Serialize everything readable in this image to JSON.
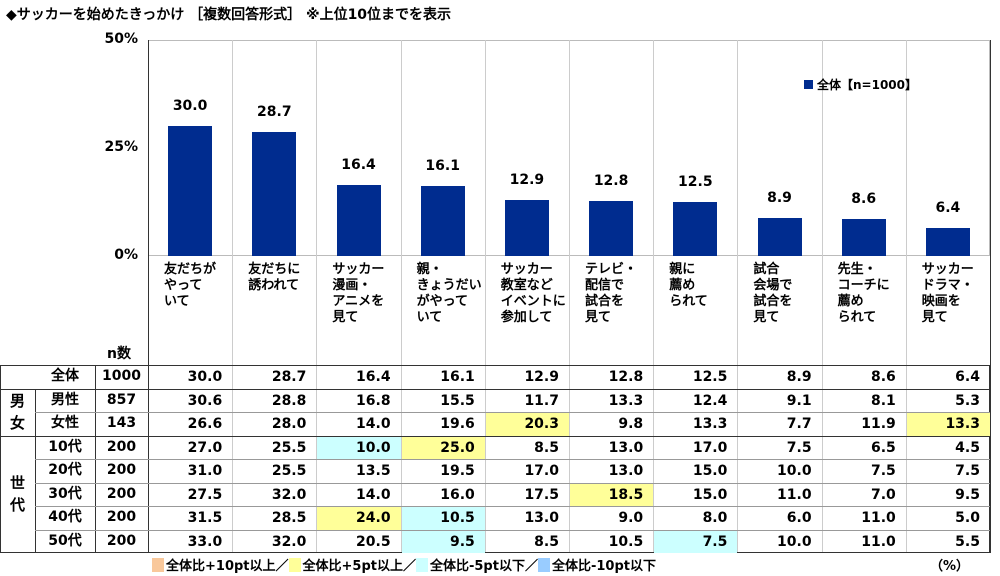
{
  "title": "◆サッカーを始めたきっかけ ［複数回答形式］ ※上位10位までを表示",
  "chart_data": {
    "type": "bar",
    "title": "◆サッカーを始めたきっかけ ［複数回答形式］ ※上位10位までを表示",
    "ylim": [
      0,
      50
    ],
    "yticks": [
      "0%",
      "25%",
      "50%"
    ],
    "grid": "vertical category separators",
    "legend_position": "top-right",
    "bar_color": "#002c8f",
    "categories": [
      "友だちが\nやって\nいて",
      "友だちに\n誘われて",
      "サッカー\n漫画・\nアニメを\n見て",
      "親・\nきょうだい\nがやって\nいて",
      "サッカー\n教室など\nイベントに\n参加して",
      "テレビ・\n配信で\n試合を\n見て",
      "親に\n薦め\nられて",
      "試合\n会場で\n試合を\n見て",
      "先生・\nコーチに\n薦め\nられて",
      "サッカー\nドラマ・\n映画を\n見て"
    ],
    "series": [
      {
        "name": "全体【n=1000】",
        "values": [
          30.0,
          28.7,
          16.4,
          16.1,
          12.9,
          12.8,
          12.5,
          8.9,
          8.6,
          6.4
        ]
      }
    ]
  },
  "table": {
    "n_header": "n数",
    "groups": [
      {
        "label": "男\n女",
        "rows": [
          1,
          2
        ]
      },
      {
        "label": "世\n代",
        "rows": [
          3,
          4,
          5,
          6,
          7
        ]
      }
    ],
    "rows": [
      {
        "label": "全体",
        "n": "1000",
        "values": [
          "30.0",
          "28.7",
          "16.4",
          "16.1",
          "12.9",
          "12.8",
          "12.5",
          "8.9",
          "8.6",
          "6.4"
        ],
        "highlight": []
      },
      {
        "label": "男性",
        "n": "857",
        "values": [
          "30.6",
          "28.8",
          "16.8",
          "15.5",
          "11.7",
          "13.3",
          "12.4",
          "9.1",
          "8.1",
          "5.3"
        ],
        "highlight": []
      },
      {
        "label": "女性",
        "n": "143",
        "values": [
          "26.6",
          "28.0",
          "14.0",
          "19.6",
          "20.3",
          "9.8",
          "13.3",
          "7.7",
          "11.9",
          "13.3"
        ],
        "highlight": [
          [
            4,
            "plus5"
          ],
          [
            9,
            "plus5"
          ]
        ]
      },
      {
        "label": "10代",
        "n": "200",
        "values": [
          "27.0",
          "25.5",
          "10.0",
          "25.0",
          "8.5",
          "13.0",
          "17.0",
          "7.5",
          "6.5",
          "4.5"
        ],
        "highlight": [
          [
            2,
            "minus5"
          ],
          [
            3,
            "plus5"
          ]
        ]
      },
      {
        "label": "20代",
        "n": "200",
        "values": [
          "31.0",
          "25.5",
          "13.5",
          "19.5",
          "17.0",
          "13.0",
          "15.0",
          "10.0",
          "7.5",
          "7.5"
        ],
        "highlight": []
      },
      {
        "label": "30代",
        "n": "200",
        "values": [
          "27.5",
          "32.0",
          "14.0",
          "16.0",
          "17.5",
          "18.5",
          "15.0",
          "11.0",
          "7.0",
          "9.5"
        ],
        "highlight": [
          [
            5,
            "plus5"
          ]
        ]
      },
      {
        "label": "40代",
        "n": "200",
        "values": [
          "31.5",
          "28.5",
          "24.0",
          "10.5",
          "13.0",
          "9.0",
          "8.0",
          "6.0",
          "11.0",
          "5.0"
        ],
        "highlight": [
          [
            2,
            "plus5"
          ],
          [
            3,
            "minus5"
          ]
        ]
      },
      {
        "label": "50代",
        "n": "200",
        "values": [
          "33.0",
          "32.0",
          "20.5",
          "9.5",
          "8.5",
          "10.5",
          "7.5",
          "10.0",
          "11.0",
          "5.5"
        ],
        "highlight": [
          [
            3,
            "minus5"
          ],
          [
            6,
            "minus5"
          ]
        ]
      }
    ]
  },
  "colors": {
    "plus10": "#f9c89b",
    "plus5": "#ffff99",
    "minus5": "#ccffff",
    "minus10": "#99ccff",
    "bar": "#002c8f"
  },
  "footer": {
    "items": [
      {
        "key": "plus10",
        "label": "全体比+10pt以上／"
      },
      {
        "key": "plus5",
        "label": "全体比+5pt以上／"
      },
      {
        "key": "minus5",
        "label": "全体比-5pt以下／"
      },
      {
        "key": "minus10",
        "label": "全体比-10pt以下"
      }
    ],
    "unit": "（%）"
  }
}
